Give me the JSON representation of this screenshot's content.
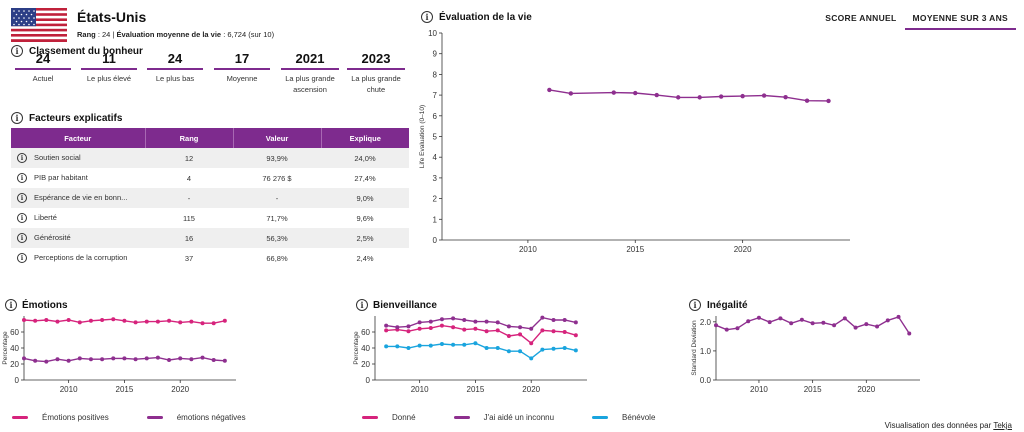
{
  "country": {
    "name": "États-Unis",
    "rank_label": "Rang",
    "rank": "24",
    "eval_label": "Évaluation moyenne de la vie",
    "eval_value": "6,724 (sur 10)"
  },
  "happiness": {
    "title": "Classement du bonheur",
    "stats": [
      {
        "value": "24",
        "label": "Actuel"
      },
      {
        "value": "11",
        "label": "Le plus élevé"
      },
      {
        "value": "24",
        "label": "Le plus bas"
      },
      {
        "value": "17",
        "label": "Moyenne"
      },
      {
        "value": "2021",
        "label": "La plus grande ascension"
      },
      {
        "value": "2023",
        "label": "La plus grande chute"
      }
    ]
  },
  "factors": {
    "title": "Facteurs explicatifs",
    "headers": [
      "Facteur",
      "Rang",
      "Valeur",
      "Explique"
    ],
    "rows": [
      {
        "name": "Soutien social",
        "rank": "12",
        "value": "93,9%",
        "explains": "24,0%"
      },
      {
        "name": "PIB par habitant",
        "rank": "4",
        "value": "76 276 $",
        "explains": "27,4%"
      },
      {
        "name": "Espérance de vie en bonn...",
        "rank": "-",
        "value": "-",
        "explains": "9,0%"
      },
      {
        "name": "Liberté",
        "rank": "115",
        "value": "71,7%",
        "explains": "9,6%"
      },
      {
        "name": "Générosité",
        "rank": "16",
        "value": "56,3%",
        "explains": "2,5%"
      },
      {
        "name": "Perceptions de la corruption",
        "rank": "37",
        "value": "66,8%",
        "explains": "2,4%"
      }
    ]
  },
  "tabs": [
    "SCORE ANNUEL",
    "MOYENNE SUR 3 ANS"
  ],
  "colors": {
    "accent": "#7e2b8e",
    "pink": "#d6237c",
    "blue": "#19a4de",
    "purple": "#8e2f8f"
  },
  "footer": {
    "text": "Visualisation des données par",
    "link": "Tekja"
  },
  "chart_data": [
    {
      "type": "line",
      "title": "Évaluation de la vie",
      "ylabel": "Life Evaluation (0–10)",
      "ylim": [
        0,
        10
      ],
      "xlim": [
        2006,
        2025
      ],
      "yticks": [
        0,
        1,
        2,
        3,
        4,
        5,
        6,
        7,
        8,
        9,
        10
      ],
      "xticks": [
        2010,
        2015,
        2020
      ],
      "series": [
        {
          "values_x": [
            2011,
            2012,
            2014,
            2015,
            2016,
            2017,
            2018,
            2019,
            2020,
            2021,
            2022,
            2023,
            2024
          ],
          "values_y": [
            7.25,
            7.08,
            7.12,
            7.1,
            7.0,
            6.89,
            6.89,
            6.93,
            6.95,
            6.98,
            6.9,
            6.73,
            6.72
          ],
          "color": "#8e2f8f"
        }
      ]
    },
    {
      "type": "line",
      "title": "Émotions",
      "ylabel": "Percentage",
      "ylim": [
        0,
        80
      ],
      "xlim": [
        2006,
        2025
      ],
      "yticks": [
        0,
        20,
        40,
        60
      ],
      "xticks": [
        2010,
        2015,
        2020
      ],
      "series": [
        {
          "name": "Émotions positives",
          "color": "#d6237c",
          "values_x": [
            2006,
            2007,
            2008,
            2009,
            2010,
            2011,
            2012,
            2013,
            2014,
            2015,
            2016,
            2017,
            2018,
            2019,
            2020,
            2021,
            2022,
            2023,
            2024
          ],
          "values_y": [
            75,
            74,
            75,
            73,
            75,
            72,
            74,
            75,
            76,
            74,
            72,
            73,
            73,
            74,
            72,
            73,
            71,
            71,
            74
          ]
        },
        {
          "name": "émotions négatives",
          "color": "#8e2f8f",
          "values_x": [
            2006,
            2007,
            2008,
            2009,
            2010,
            2011,
            2012,
            2013,
            2014,
            2015,
            2016,
            2017,
            2018,
            2019,
            2020,
            2021,
            2022,
            2023,
            2024
          ],
          "values_y": [
            27,
            24,
            23,
            26,
            24,
            27,
            26,
            26,
            27,
            27,
            26,
            27,
            28,
            25,
            27,
            26,
            28,
            25,
            24
          ]
        }
      ]
    },
    {
      "type": "line",
      "title": "Bienveillance",
      "ylabel": "Percentage",
      "ylim": [
        0,
        80
      ],
      "xlim": [
        2006,
        2025
      ],
      "yticks": [
        0,
        20,
        40,
        60
      ],
      "xticks": [
        2010,
        2015,
        2020
      ],
      "series": [
        {
          "name": "Donné",
          "color": "#d6237c",
          "values_x": [
            2007,
            2008,
            2009,
            2010,
            2011,
            2012,
            2013,
            2014,
            2015,
            2016,
            2017,
            2018,
            2019,
            2020,
            2021,
            2022,
            2023,
            2024
          ],
          "values_y": [
            62,
            63,
            61,
            64,
            65,
            68,
            66,
            63,
            64,
            61,
            62,
            55,
            57,
            46,
            62,
            61,
            60,
            56
          ]
        },
        {
          "name": "J'ai aidé un inconnu",
          "color": "#8e2f8f",
          "values_x": [
            2007,
            2008,
            2009,
            2010,
            2011,
            2012,
            2013,
            2014,
            2015,
            2016,
            2017,
            2018,
            2019,
            2020,
            2021,
            2022,
            2023,
            2024
          ],
          "values_y": [
            68,
            66,
            67,
            72,
            73,
            76,
            77,
            75,
            73,
            73,
            72,
            67,
            66,
            64,
            78,
            75,
            75,
            72
          ]
        },
        {
          "name": "Bénévole",
          "color": "#19a4de",
          "values_x": [
            2007,
            2008,
            2009,
            2010,
            2011,
            2012,
            2013,
            2014,
            2015,
            2016,
            2017,
            2018,
            2019,
            2020,
            2021,
            2022,
            2023,
            2024
          ],
          "values_y": [
            42,
            42,
            40,
            43,
            43,
            45,
            44,
            44,
            46,
            40,
            40,
            36,
            36,
            27,
            38,
            39,
            40,
            37
          ]
        }
      ]
    },
    {
      "type": "line",
      "title": "Inégalité",
      "ylabel": "Standard Deviation",
      "ylim": [
        0,
        2.2
      ],
      "xlim": [
        2006,
        2025
      ],
      "yticks": [
        0.0,
        1.0,
        2.0
      ],
      "xticks": [
        2010,
        2015,
        2020
      ],
      "series": [
        {
          "color": "#8e2f8f",
          "values_x": [
            2006,
            2007,
            2008,
            2009,
            2010,
            2011,
            2012,
            2013,
            2014,
            2015,
            2016,
            2017,
            2018,
            2019,
            2020,
            2021,
            2022,
            2023,
            2024
          ],
          "values_y": [
            1.88,
            1.73,
            1.78,
            2.02,
            2.14,
            1.99,
            2.12,
            1.95,
            2.07,
            1.95,
            1.97,
            1.88,
            2.12,
            1.8,
            1.92,
            1.84,
            2.05,
            2.17,
            1.6
          ]
        }
      ]
    }
  ]
}
